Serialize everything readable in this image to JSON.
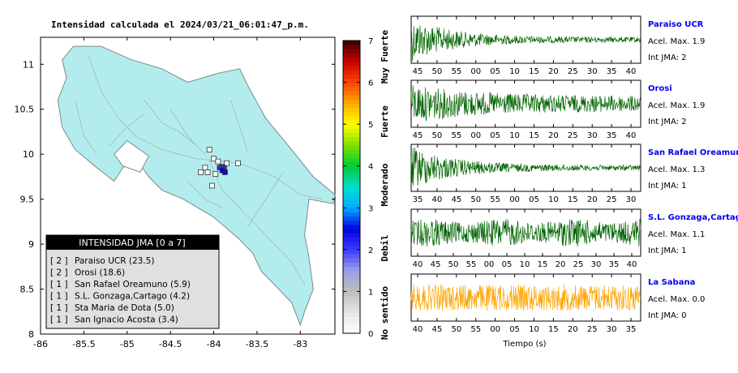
{
  "title": "Intensidad calculada el 2024/03/21_06:01:47_p.m.",
  "chart_data": [
    {
      "type": "scatter",
      "name": "map",
      "xlim": [
        -86,
        -82.6
      ],
      "ylim": [
        8,
        11.3
      ],
      "xticks": [
        -86,
        -85.5,
        -85,
        -84.5,
        -84,
        -83.5,
        -83
      ],
      "xtick_labels": [
        "-86",
        "-85.5",
        "-85",
        "-84.5",
        "-84",
        "-83.5",
        "-83"
      ],
      "yticks": [
        8,
        8.5,
        9,
        9.5,
        10,
        10.5,
        11
      ],
      "ytick_labels": [
        "8",
        "8.5",
        "9",
        "9.5",
        "10",
        "10.5",
        "11"
      ],
      "land_color": "#b3ecec",
      "stations": [
        {
          "lon": -84.05,
          "lat": 10.05,
          "color": "#ffffff"
        },
        {
          "lon": -84.0,
          "lat": 9.95,
          "color": "#ffffff"
        },
        {
          "lon": -83.95,
          "lat": 9.92,
          "color": "#ffffff"
        },
        {
          "lon": -84.1,
          "lat": 9.85,
          "color": "#ffffff"
        },
        {
          "lon": -83.85,
          "lat": 9.9,
          "color": "#ffffff"
        },
        {
          "lon": -84.15,
          "lat": 9.8,
          "color": "#ffffff"
        },
        {
          "lon": -83.98,
          "lat": 9.78,
          "color": "#ffffff"
        },
        {
          "lon": -84.02,
          "lat": 9.65,
          "color": "#ffffff"
        },
        {
          "lon": -83.72,
          "lat": 9.9,
          "color": "#ffffff"
        },
        {
          "lon": -84.07,
          "lat": 9.8,
          "color": "#ffffff"
        },
        {
          "lon": -83.9,
          "lat": 9.86,
          "color": "#3333cc"
        },
        {
          "lon": -83.88,
          "lat": 9.84,
          "color": "#3333cc"
        },
        {
          "lon": -83.93,
          "lat": 9.85,
          "color": "#3333cc"
        },
        {
          "lon": -83.87,
          "lat": 9.8,
          "color": "#0000dd"
        },
        {
          "lon": -83.9,
          "lat": 9.82,
          "color": "#0000dd"
        }
      ]
    },
    {
      "type": "heatmap",
      "name": "colorbar",
      "range": [
        0,
        7
      ],
      "ticks": [
        0,
        1,
        2,
        3,
        4,
        5,
        6,
        7
      ],
      "tick_labels": [
        "0",
        "1",
        "2",
        "3",
        "4",
        "5",
        "6",
        "7"
      ],
      "category_labels": [
        "No sentido",
        "Debil",
        "Moderado",
        "Fuerte",
        "Muy Fuerte"
      ]
    },
    {
      "type": "line",
      "name": "seismograms",
      "xlabel": "Tiempo (s)",
      "traces": [
        {
          "station": "Paraiso UCR",
          "accel_label": "Acel. Max. 1.9",
          "jma_label": "Int JMA: 2",
          "color": "#006400",
          "tick_labels": [
            "45",
            "50",
            "55",
            "00",
            "05",
            "10",
            "15",
            "20",
            "25",
            "30",
            "35",
            "40"
          ],
          "envelope": "decay"
        },
        {
          "station": "Orosi",
          "accel_label": "Acel. Max. 1.9",
          "jma_label": "Int JMA: 2",
          "color": "#006400",
          "tick_labels": [
            "45",
            "50",
            "55",
            "00",
            "05",
            "10",
            "15",
            "20",
            "25",
            "30",
            "35",
            "40"
          ],
          "envelope": "sustained"
        },
        {
          "station": "San Rafael Oreamuno",
          "accel_label": "Acel. Max. 1.3",
          "jma_label": "Int JMA: 1",
          "color": "#006400",
          "tick_labels": [
            "35",
            "40",
            "45",
            "50",
            "55",
            "00",
            "05",
            "10",
            "15",
            "20",
            "25",
            "30"
          ],
          "envelope": "decay"
        },
        {
          "station": "S.L. Gonzaga,Cartago",
          "accel_label": "Acel. Max. 1.1",
          "jma_label": "Int JMA: 1",
          "color": "#006400",
          "tick_labels": [
            "40",
            "45",
            "50",
            "55",
            "00",
            "05",
            "10",
            "15",
            "20",
            "25",
            "30",
            "35",
            "40"
          ],
          "envelope": "uniform"
        },
        {
          "station": "La Sabana",
          "accel_label": "Acel. Max. 0.0",
          "jma_label": "Int JMA: 0",
          "color": "#ffa500",
          "tick_labels": [
            "40",
            "45",
            "50",
            "55",
            "00",
            "05",
            "10",
            "15",
            "20",
            "25",
            "30",
            "35"
          ],
          "envelope": "noise"
        }
      ]
    }
  ],
  "legend": {
    "header": "INTENSIDAD JMA [0 a 7]",
    "rows": [
      {
        "jma": "[ 2 ]",
        "text": "Paraiso UCR (23.5)"
      },
      {
        "jma": "[ 2 ]",
        "text": "Orosi (18.6)"
      },
      {
        "jma": "[ 1 ]",
        "text": "San Rafael Oreamuno (5.9)"
      },
      {
        "jma": "[ 1 ]",
        "text": "S.L. Gonzaga,Cartago (4.2)"
      },
      {
        "jma": "[ 1 ]",
        "text": "Sta Maria de Dota (5.0)"
      },
      {
        "jma": "[ 1 ]",
        "text": "San Ignacio Acosta (3.4)"
      }
    ]
  }
}
